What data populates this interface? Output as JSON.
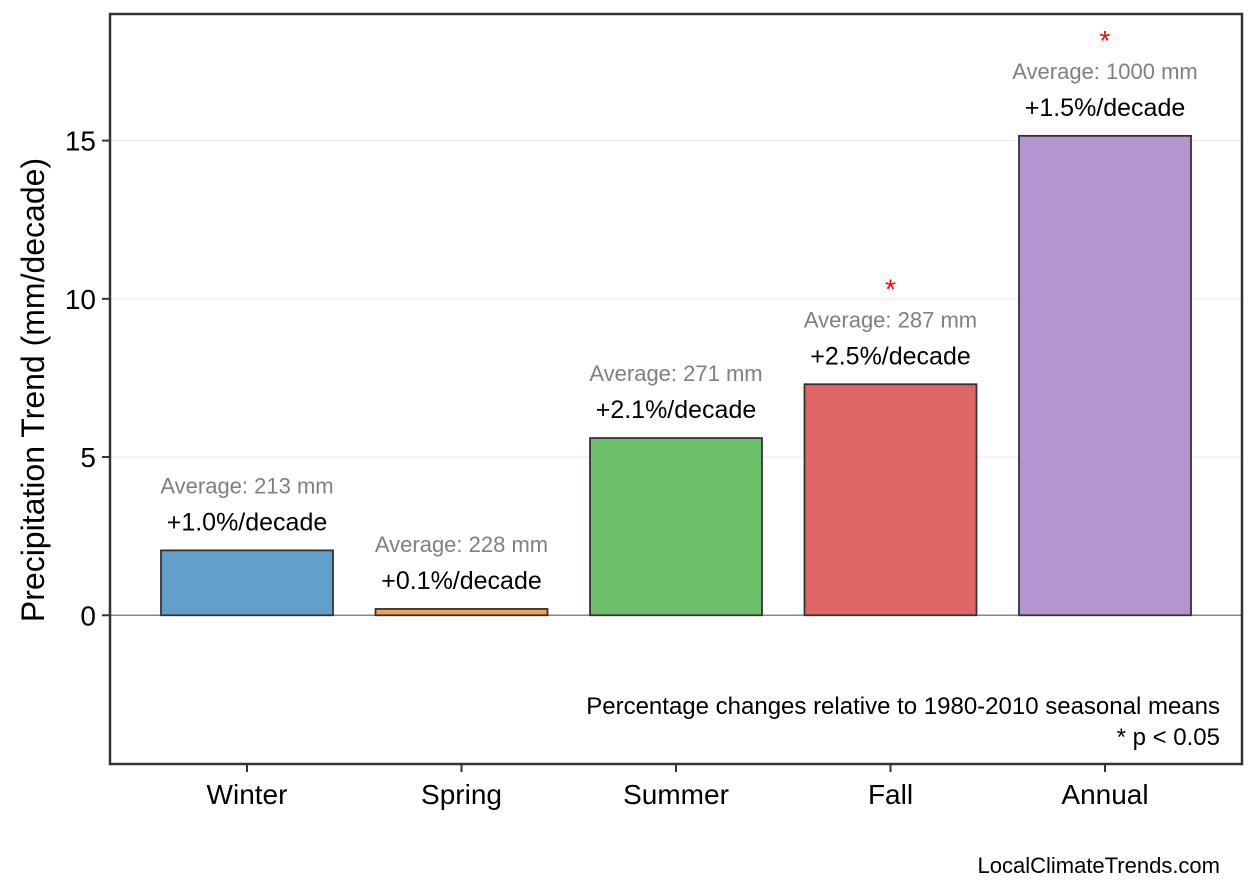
{
  "chart_data": {
    "type": "bar",
    "categories": [
      "Winter",
      "Spring",
      "Summer",
      "Fall",
      "Annual"
    ],
    "values": [
      2.05,
      0.2,
      5.6,
      7.3,
      15.15
    ],
    "colors": [
      "#62a0cb",
      "#f5a056",
      "#6cbf6b",
      "#e06666",
      "#b395cf"
    ],
    "percent_labels": [
      "+1.0%/decade",
      "+0.1%/decade",
      "+2.1%/decade",
      "+2.5%/decade",
      "+1.5%/decade"
    ],
    "average_labels": [
      "Average: 213 mm",
      "Average: 228 mm",
      "Average: 271 mm",
      "Average: 287 mm",
      "Average: 1000 mm"
    ],
    "significant": [
      false,
      false,
      false,
      true,
      true
    ],
    "significance_marker": "*",
    "ylabel": "Precipitation Trend (mm/decade)",
    "xlabel": "",
    "ylim": [
      -4.7,
      19
    ],
    "yticks": [
      0,
      5,
      10,
      15
    ],
    "grid": true,
    "zero_line": true
  },
  "annotations": {
    "note_line1": "Percentage changes relative to 1980-2010 seasonal means",
    "note_line2": "* p < 0.05"
  },
  "credit": "LocalClimateTrends.com"
}
